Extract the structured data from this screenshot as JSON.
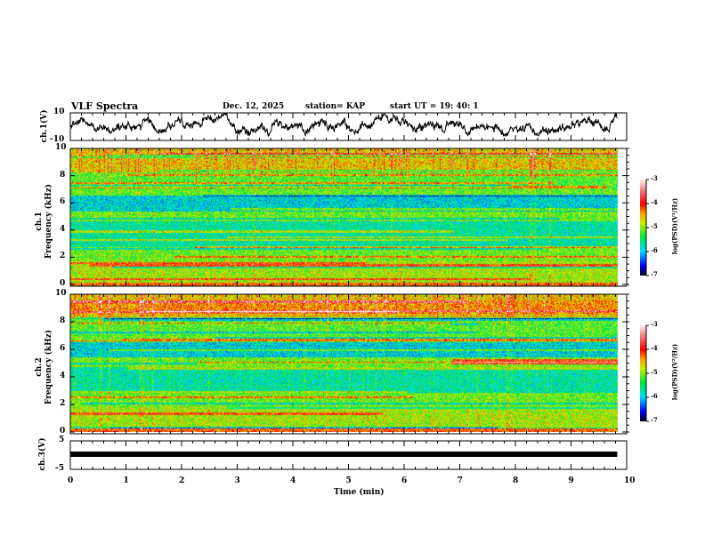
{
  "header": {
    "title": "VLF Spectra",
    "date": "Dec. 12, 2025",
    "station": "station= KAP",
    "start_ut": "start  UT =   19: 40: 1"
  },
  "chart_data": [
    {
      "type": "line",
      "name": "ch1-waveform",
      "ylabel": "ch.1(V)",
      "ylim": [
        -10,
        10
      ],
      "yticks": [
        "10",
        "-10"
      ],
      "xlim": [
        0,
        10
      ],
      "data_end_min": 9.83
    },
    {
      "type": "heatmap",
      "name": "ch1-spectrogram",
      "ylabel": "ch.1\nFrequency (kHz)",
      "ylabel_line1": "ch.1",
      "ylabel_line2": "Frequency  (kHz)",
      "ylim": [
        0,
        10
      ],
      "yticks": [
        "0",
        "2",
        "4",
        "6",
        "8",
        "10"
      ],
      "xlim": [
        0,
        10
      ],
      "colorbar": {
        "label": "log(PSD)(V²/Hz)",
        "range": [
          -7,
          -3
        ],
        "ticks": [
          "-3",
          "-4",
          "-5",
          "-6",
          "-7"
        ]
      },
      "band_steps_min": [
        1.25,
        2.5,
        6.1
      ]
    },
    {
      "type": "heatmap",
      "name": "ch2-spectrogram",
      "ylabel_line1": "ch.2",
      "ylabel_line2": "Frequency  (kHz)",
      "ylim": [
        0,
        10
      ],
      "yticks": [
        "0",
        "2",
        "4",
        "6",
        "8",
        "10"
      ],
      "xlim": [
        0,
        10
      ],
      "colorbar": {
        "label": "log(PSD)(V²/Hz)",
        "range": [
          -7,
          -3
        ],
        "ticks": [
          "-3",
          "-4",
          "-5",
          "-6",
          "-7"
        ]
      },
      "band_steps_min": [
        1.25,
        2.5,
        6.1,
        6.85
      ]
    },
    {
      "type": "line",
      "name": "ch3-waveform",
      "ylabel": "ch.3(V)",
      "ylim": [
        -5,
        5
      ],
      "yticks": [
        "5",
        "-5"
      ],
      "value_approx": 0,
      "xlim": [
        0,
        10
      ]
    }
  ],
  "xaxis": {
    "label": "Time  (min)",
    "ticks": [
      "0",
      "1",
      "2",
      "3",
      "4",
      "5",
      "6",
      "7",
      "8",
      "9",
      "10"
    ]
  }
}
